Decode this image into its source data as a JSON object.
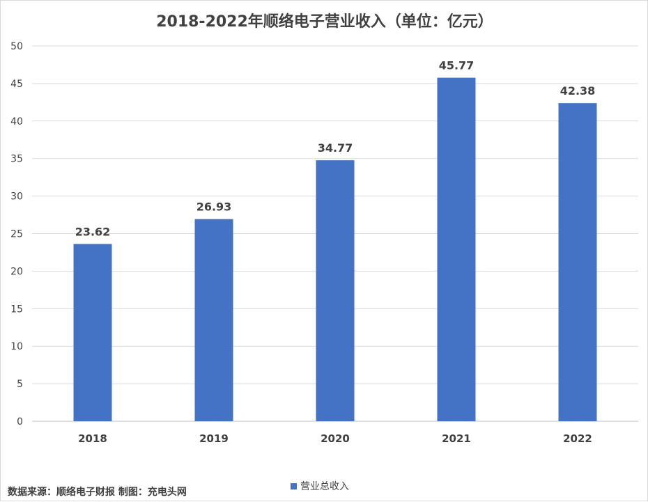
{
  "chart_data": {
    "type": "bar",
    "title": "2018-2022年顺络电子营业收入（单位：亿元）",
    "categories": [
      "2018",
      "2019",
      "2020",
      "2021",
      "2022"
    ],
    "series": [
      {
        "name": "营业总收入",
        "values": [
          23.62,
          26.93,
          34.77,
          45.77,
          42.38
        ],
        "color": "#4472C4"
      }
    ],
    "data_labels": [
      "23.62",
      "26.93",
      "34.77",
      "45.77",
      "42.38"
    ],
    "ylim": [
      0,
      50
    ],
    "yticks": [
      0,
      5,
      10,
      15,
      20,
      25,
      30,
      35,
      40,
      45,
      50
    ],
    "grid": true,
    "legend_position": "bottom"
  },
  "footer": {
    "source": "数据来源：顺络电子财报  制图：充电头网"
  }
}
